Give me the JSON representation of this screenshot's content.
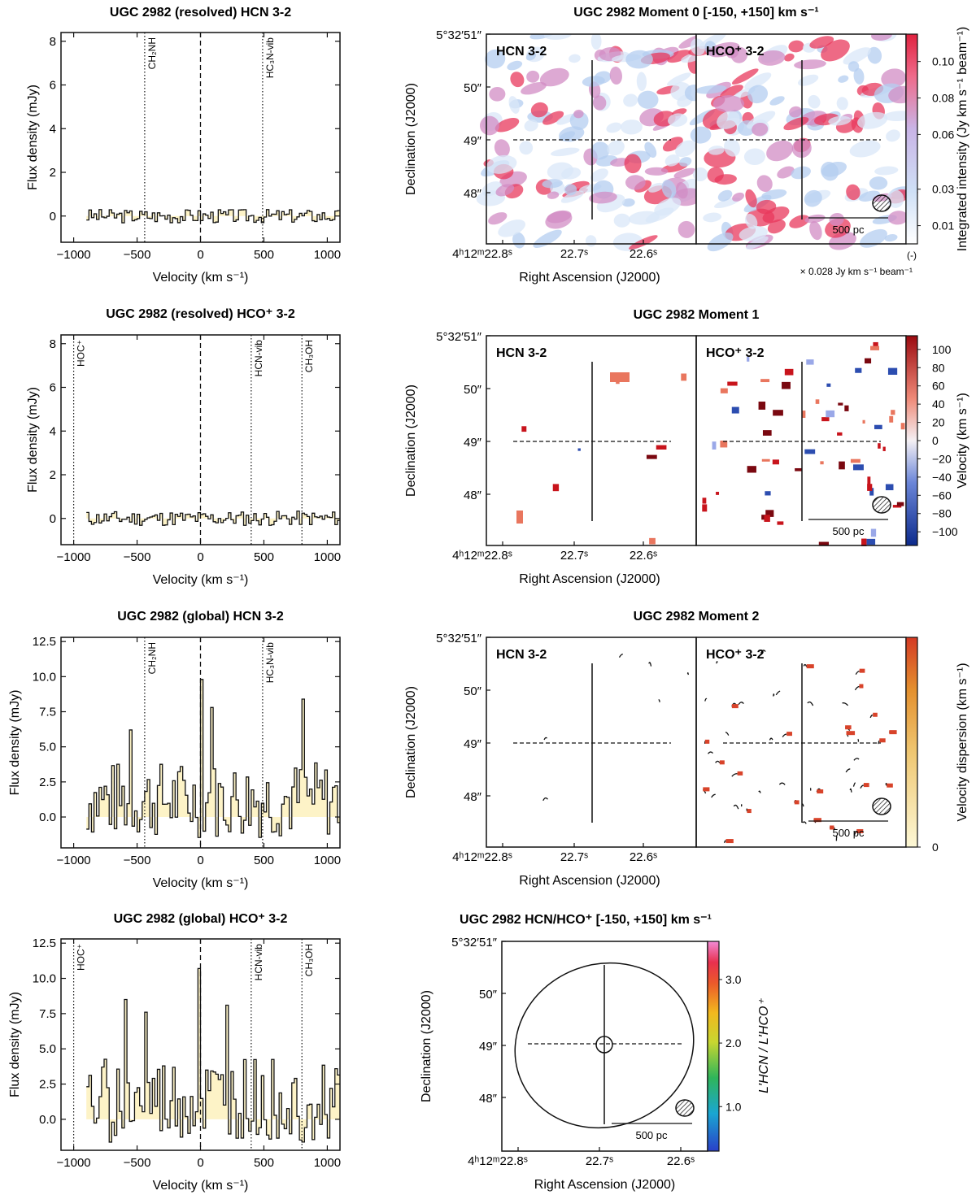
{
  "colors": {
    "fill": "#fdf3c7",
    "line": "#111111",
    "mom0_low": "#eaf2fb",
    "mom0_mid": "#a8c6ee",
    "mom0_high": "#e8385c",
    "vel_neg": "#2c4db0",
    "vel_pos": "#c8141c",
    "disp_low": "#fbf5cc",
    "disp_high": "#d8432a"
  },
  "chart_data": [
    {
      "type": "line",
      "id": "resolved-hcn",
      "title": "UGC 2982  (resolved)  HCN 3-2",
      "xlabel": "Velocity (km s⁻¹)",
      "ylabel": "Flux density (mJy)",
      "xlim": [
        -1100,
        1100
      ],
      "ylim": [
        -1.2,
        8.4
      ],
      "xticks": [
        -1000,
        -500,
        0,
        500,
        1000
      ],
      "xticklabels": [
        "−1000",
        "−500",
        "0",
        "500",
        "1000"
      ],
      "yticks": [
        0,
        2,
        4,
        6,
        8
      ],
      "yticklabels": [
        "0",
        "2",
        "4",
        "6",
        "8"
      ],
      "lines": [
        {
          "v": -440,
          "label": "CH₂NH"
        },
        {
          "v": 490,
          "label": "HC₃N-vib"
        }
      ],
      "zero_line": 0,
      "spectrum": {
        "vmin": -900,
        "vmax": 1080,
        "step": 20,
        "amp": 0.32,
        "seed": 3,
        "bumps": []
      }
    },
    {
      "type": "line",
      "id": "resolved-hcop",
      "title": "UGC 2982  (resolved)  HCO⁺ 3-2",
      "xlabel": "Velocity (km s⁻¹)",
      "ylabel": "Flux density (mJy)",
      "xlim": [
        -1100,
        1100
      ],
      "ylim": [
        -1.2,
        8.4
      ],
      "xticks": [
        -1000,
        -500,
        0,
        500,
        1000
      ],
      "xticklabels": [
        "−1000",
        "−500",
        "0",
        "500",
        "1000"
      ],
      "yticks": [
        0,
        2,
        4,
        6,
        8
      ],
      "yticklabels": [
        "0",
        "2",
        "4",
        "6",
        "8"
      ],
      "lines": [
        {
          "v": -1000,
          "label": "HOC⁺"
        },
        {
          "v": 400,
          "label": "HCN-vib"
        },
        {
          "v": 800,
          "label": "CH₃OH"
        }
      ],
      "zero_line": 0,
      "spectrum": {
        "vmin": -900,
        "vmax": 1080,
        "step": 20,
        "amp": 0.34,
        "seed": 11,
        "bumps": []
      }
    },
    {
      "type": "line",
      "id": "global-hcn",
      "title": "UGC 2982  (global)  HCN 3-2",
      "xlabel": "Velocity (km s⁻¹)",
      "ylabel": "Flux density (mJy)",
      "xlim": [
        -1100,
        1100
      ],
      "ylim": [
        -2.2,
        12.8
      ],
      "xticks": [
        -1000,
        -500,
        0,
        500,
        1000
      ],
      "xticklabels": [
        "−1000",
        "−500",
        "0",
        "500",
        "1000"
      ],
      "yticks": [
        0,
        2.5,
        5,
        7.5,
        10,
        12.5
      ],
      "yticklabels": [
        "0.0",
        "2.5",
        "5.0",
        "7.5",
        "10.0",
        "12.5"
      ],
      "lines": [
        {
          "v": -440,
          "label": "CH₂NH"
        },
        {
          "v": 490,
          "label": "HC₃N-vib"
        }
      ],
      "zero_line": 0,
      "spectrum": {
        "vmin": -900,
        "vmax": 1080,
        "step": 20,
        "amp": 5.0,
        "seed": 7,
        "bumps": [
          [
            0,
            9.8
          ],
          [
            80,
            7.8
          ],
          [
            800,
            8.4
          ],
          [
            -560,
            6.2
          ]
        ]
      }
    },
    {
      "type": "line",
      "id": "global-hcop",
      "title": "UGC 2982  (global)  HCO⁺ 3-2",
      "xlabel": "Velocity (km s⁻¹)",
      "ylabel": "Flux density (mJy)",
      "xlim": [
        -1100,
        1100
      ],
      "ylim": [
        -2.2,
        12.8
      ],
      "xticks": [
        -1000,
        -500,
        0,
        500,
        1000
      ],
      "xticklabels": [
        "−1000",
        "−500",
        "0",
        "500",
        "1000"
      ],
      "yticks": [
        0,
        2.5,
        5,
        7.5,
        10,
        12.5
      ],
      "yticklabels": [
        "0.0",
        "2.5",
        "5.0",
        "7.5",
        "10.0",
        "12.5"
      ],
      "lines": [
        {
          "v": -1000,
          "label": "HOC⁺"
        },
        {
          "v": 400,
          "label": "HCN-vib"
        },
        {
          "v": 800,
          "label": "CH₃OH"
        }
      ],
      "zero_line": 0,
      "spectrum": {
        "vmin": -900,
        "vmax": 1080,
        "step": 20,
        "amp": 5.4,
        "seed": 19,
        "bumps": [
          [
            -20,
            10.7
          ],
          [
            -600,
            8.5
          ],
          [
            200,
            8.1
          ],
          [
            -440,
            7.6
          ]
        ]
      }
    },
    {
      "type": "heatmap",
      "id": "moment0",
      "title": "UGC 2982  Moment 0  [-150, +150] km s⁻¹",
      "xlabel": "Right Ascension (J2000)",
      "ylabel": "Declination (J2000)",
      "panels": [
        "HCN 3-2",
        "HCO⁺ 3-2"
      ],
      "ra_ticks": [
        "4ʰ12ᵐ22.8ˢ",
        "22.7ˢ",
        "22.6ˢ"
      ],
      "dec_ticks": [
        "5°32′51″",
        "50″",
        "49″",
        "48″"
      ],
      "scalebar": "500 pc",
      "colorbar": {
        "label": "Integrated intensity (Jy km s⁻¹ beam⁻¹)",
        "ticks": [
          "0.10",
          "0.08",
          "0.06",
          "0.03",
          "0.01"
        ],
        "tick_values": [
          0.1,
          0.08,
          0.06,
          0.03,
          0.01
        ],
        "range": [
          0.0,
          0.115
        ],
        "unit_note": "(-)",
        "noise_note": "× 0.028 Jy km s⁻¹ beam⁻¹"
      },
      "map": {
        "seed": 5,
        "seed2": 23
      }
    },
    {
      "type": "heatmap",
      "id": "moment1",
      "title": "UGC 2982  Moment 1",
      "xlabel": "Right Ascension (J2000)",
      "ylabel": "Declination (J2000)",
      "panels": [
        "HCN 3-2",
        "HCO⁺ 3-2"
      ],
      "ra_ticks": [
        "4ʰ12ᵐ22.8ˢ",
        "22.7ˢ",
        "22.6ˢ"
      ],
      "dec_ticks": [
        "5°32′51″",
        "50″",
        "49″",
        "48″"
      ],
      "scalebar": "500 pc",
      "colorbar": {
        "label": "Velocity (km s⁻¹)",
        "ticks": [
          "100",
          "80",
          "60",
          "40",
          "20",
          "0",
          "−20",
          "−40",
          "−60",
          "−80",
          "−100"
        ],
        "tick_values": [
          100,
          80,
          60,
          40,
          20,
          0,
          -20,
          -40,
          -60,
          -80,
          -100
        ],
        "range": [
          -115,
          115
        ]
      },
      "map": {
        "seed": 31,
        "seed2": 37
      }
    },
    {
      "type": "heatmap",
      "id": "moment2",
      "title": "UGC 2982  Moment 2",
      "xlabel": "Right Ascension (J2000)",
      "ylabel": "Declination (J2000)",
      "panels": [
        "HCN 3-2",
        "HCO⁺ 3-2"
      ],
      "ra_ticks": [
        "4ʰ12ᵐ22.8ˢ",
        "22.7ˢ",
        "22.6ˢ"
      ],
      "dec_ticks": [
        "5°32′51″",
        "50″",
        "49″",
        "48″"
      ],
      "scalebar": "500 pc",
      "colorbar": {
        "label": "Velocity dispersion (km s⁻¹)",
        "ticks": [
          "0"
        ],
        "tick_values": [
          0
        ],
        "range": [
          0,
          1
        ]
      },
      "map": {
        "seed": 41,
        "seed2": 43
      }
    },
    {
      "type": "heatmap",
      "id": "ratio",
      "title": "UGC 2982  HCN/HCO⁺  [-150, +150] km s⁻¹",
      "xlabel": "Right Ascension (J2000)",
      "ylabel": "Declination (J2000)",
      "panels": [],
      "ra_ticks": [
        "4ʰ12ᵐ22.8ˢ",
        "22.7ˢ",
        "22.6ˢ"
      ],
      "dec_ticks": [
        "5°32′51″",
        "50″",
        "49″",
        "48″"
      ],
      "scalebar": "500 pc",
      "colorbar": {
        "label": "L′HCN / L′HCO⁺",
        "ticks": [
          "3.0",
          "2.0",
          "1.0"
        ],
        "tick_values": [
          3.0,
          2.0,
          1.0
        ],
        "range": [
          0.3,
          3.6
        ]
      }
    }
  ]
}
